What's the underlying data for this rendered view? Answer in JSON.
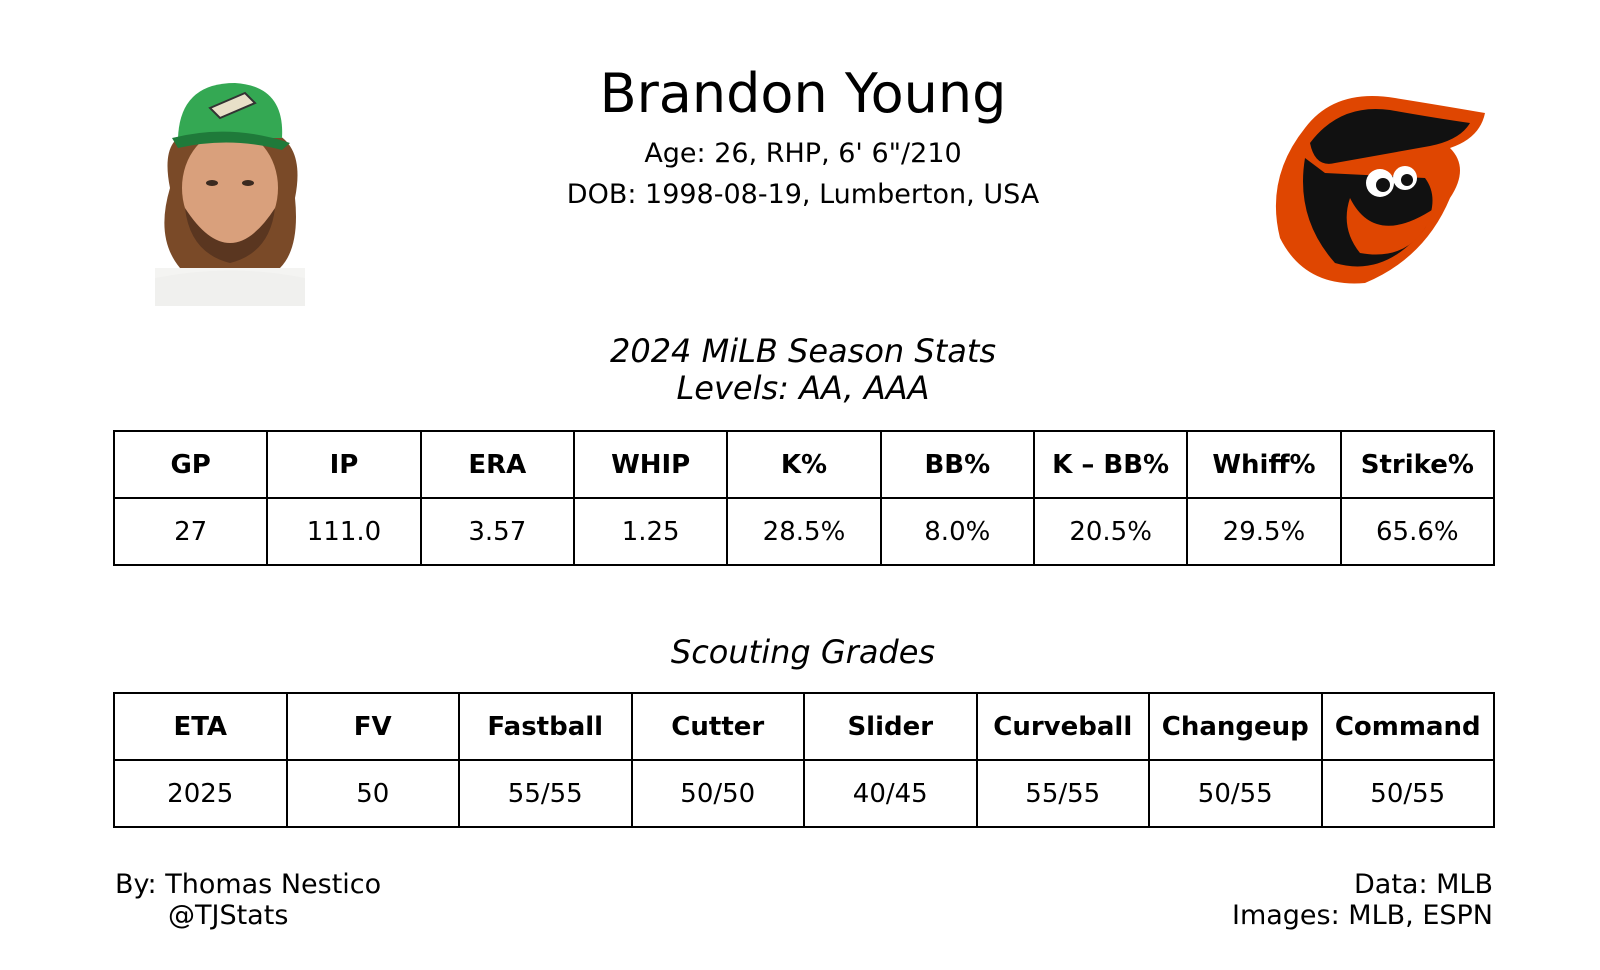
{
  "header": {
    "name": "Brandon Young",
    "bio": [
      "Age: 26, RHP, 6' 6\"/210",
      "DOB: 1998-08-19, Lumberton, USA"
    ]
  },
  "season": {
    "title": "2024 MiLB Season Stats",
    "subtitle": "Levels: AA, AAA",
    "table": {
      "columns": [
        "GP",
        "IP",
        "ERA",
        "WHIP",
        "K%",
        "BB%",
        "K – BB%",
        "Whiff%",
        "Strike%"
      ],
      "rows": [
        [
          "27",
          "111.0",
          "3.57",
          "1.25",
          "28.5%",
          "8.0%",
          "20.5%",
          "29.5%",
          "65.6%"
        ]
      ]
    }
  },
  "scouting": {
    "title": "Scouting Grades",
    "table": {
      "columns": [
        "ETA",
        "FV",
        "Fastball",
        "Cutter",
        "Slider",
        "Curveball",
        "Changeup",
        "Command"
      ],
      "rows": [
        [
          "2025",
          "50",
          "55/55",
          "50/50",
          "40/45",
          "55/55",
          "50/55",
          "50/55"
        ]
      ]
    }
  },
  "footer": {
    "author": [
      "By: Thomas Nestico",
      "@TJStats"
    ],
    "sources": [
      "Data: MLB",
      "Images: MLB, ESPN"
    ]
  }
}
